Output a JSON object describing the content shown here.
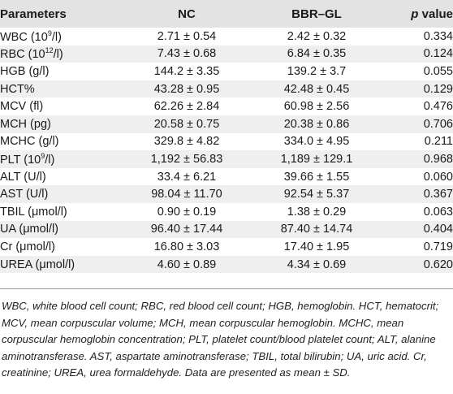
{
  "table": {
    "headers": {
      "parameters": "Parameters",
      "nc": "NC",
      "bbr_gl": "BBR–GL",
      "p_italic": "p",
      "p_rest": " value"
    },
    "rows": [
      {
        "param_base": "WBC (10",
        "param_sup": "9",
        "param_tail": "/l)",
        "nc": "2.71 ± 0.54",
        "bbr": "2.42 ± 0.32",
        "p": "0.334"
      },
      {
        "param_base": "RBC (10",
        "param_sup": "12",
        "param_tail": "/l)",
        "nc": "7.43 ± 0.68",
        "bbr": "6.84 ± 0.35",
        "p": "0.124"
      },
      {
        "param_base": "HGB (g/l)",
        "param_sup": "",
        "param_tail": "",
        "nc": "144.2 ± 3.35",
        "bbr": "139.2 ± 3.7",
        "p": "0.055"
      },
      {
        "param_base": "HCT%",
        "param_sup": "",
        "param_tail": "",
        "nc": "43.28 ± 0.95",
        "bbr": "42.48 ± 0.45",
        "p": "0.129"
      },
      {
        "param_base": "MCV (fl)",
        "param_sup": "",
        "param_tail": "",
        "nc": "62.26 ± 2.84",
        "bbr": "60.98 ± 2.56",
        "p": "0.476"
      },
      {
        "param_base": "MCH (pg)",
        "param_sup": "",
        "param_tail": "",
        "nc": "20.58 ± 0.75",
        "bbr": "20.38 ± 0.86",
        "p": "0.706"
      },
      {
        "param_base": "MCHC (g/l)",
        "param_sup": "",
        "param_tail": "",
        "nc": "329.8 ± 4.82",
        "bbr": "334.0 ± 4.95",
        "p": "0.211"
      },
      {
        "param_base": "PLT (10",
        "param_sup": "9",
        "param_tail": "/l)",
        "nc": "1,192 ± 56.83",
        "bbr": "1,189 ± 129.1",
        "p": "0.968"
      },
      {
        "param_base": "ALT (U/l)",
        "param_sup": "",
        "param_tail": "",
        "nc": "33.4 ± 6.21",
        "bbr": "39.66 ± 1.55",
        "p": "0.060"
      },
      {
        "param_base": "AST (U/l)",
        "param_sup": "",
        "param_tail": "",
        "nc": "98.04 ± 11.70",
        "bbr": "92.54 ± 5.37",
        "p": "0.367"
      },
      {
        "param_base": "TBIL (μmol/l)",
        "param_sup": "",
        "param_tail": "",
        "nc": "0.90 ± 0.19",
        "bbr": "1.38 ± 0.29",
        "p": "0.063"
      },
      {
        "param_base": "UA (μmol/l)",
        "param_sup": "",
        "param_tail": "",
        "nc": "96.40 ± 17.44",
        "bbr": "87.40 ± 14.74",
        "p": "0.404"
      },
      {
        "param_base": "Cr (μmol/l)",
        "param_sup": "",
        "param_tail": "",
        "nc": "16.80 ± 3.03",
        "bbr": "17.40 ± 1.95",
        "p": "0.719"
      },
      {
        "param_base": "UREA (μmol/l)",
        "param_sup": "",
        "param_tail": "",
        "nc": "4.60 ± 0.89",
        "bbr": "4.34 ± 0.69",
        "p": "0.620"
      }
    ]
  },
  "footnote": "WBC, white blood cell count; RBC, red blood cell count; HGB, hemoglobin. HCT, hematocrit; MCV, mean corpuscular volume; MCH, mean corpuscular hemoglobin. MCHC, mean corpuscular hemoglobin concentration; PLT, platelet count/blood platelet count; ALT, alanine aminotransferase. AST, aspartate aminotransferase; TBIL, total bilirubin; UA, uric acid. Cr, creatinine; UREA, urea formaldehyde. Data are presented as mean ± SD.",
  "colors": {
    "header_bg": "#e3e3e3",
    "stripe_bg": "#efefef",
    "text": "#1a1a1a"
  }
}
